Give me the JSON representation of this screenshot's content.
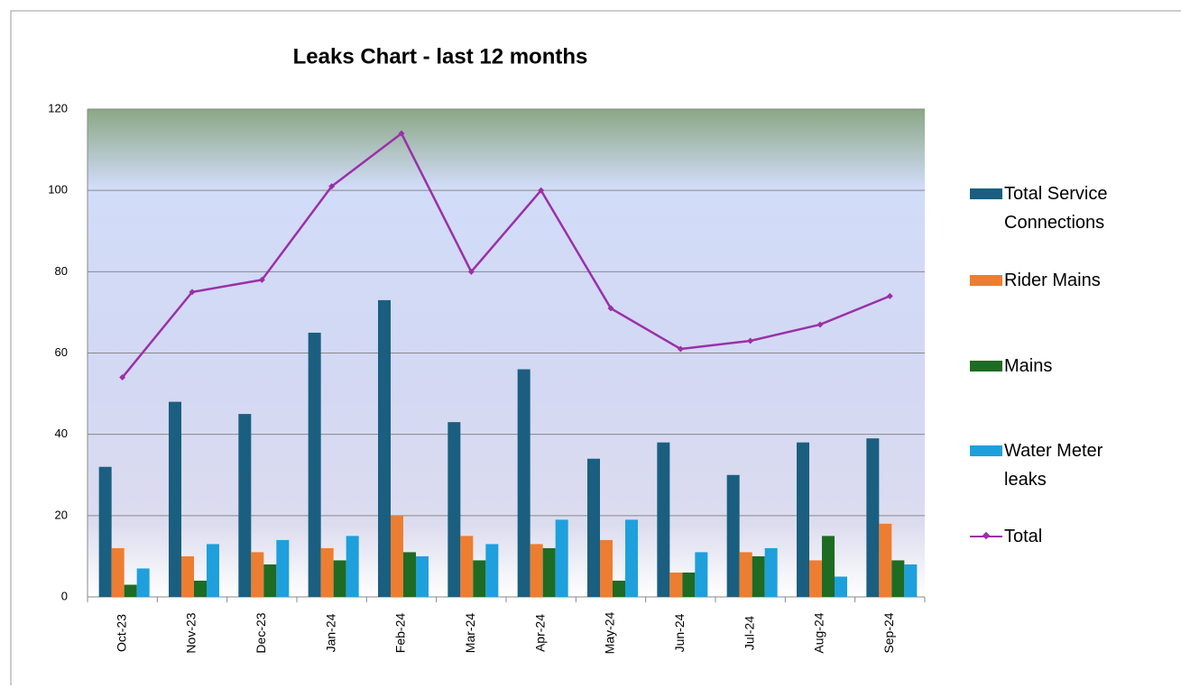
{
  "chart_data": {
    "type": "bar",
    "title": "Leaks Chart - last 12 months",
    "categories": [
      "Oct-23",
      "Nov-23",
      "Dec-23",
      "Jan-24",
      "Feb-24",
      "Mar-24",
      "Apr-24",
      "May-24",
      "Jun-24",
      "Jul-24",
      "Aug-24",
      "Sep-24"
    ],
    "series": [
      {
        "name": "Total Service Connections",
        "color": "#1a5f80",
        "type": "bar",
        "values": [
          32,
          48,
          45,
          65,
          73,
          43,
          56,
          34,
          38,
          30,
          38,
          39
        ]
      },
      {
        "name": "Rider Mains",
        "color": "#ed7d31",
        "type": "bar",
        "values": [
          12,
          10,
          11,
          12,
          20,
          15,
          13,
          14,
          6,
          11,
          9,
          18
        ]
      },
      {
        "name": "Mains",
        "color": "#1e6b23",
        "type": "bar",
        "values": [
          3,
          4,
          8,
          9,
          11,
          9,
          12,
          4,
          6,
          10,
          15,
          9
        ]
      },
      {
        "name": "Water Meter leaks",
        "color": "#1ea0dc",
        "type": "bar",
        "values": [
          7,
          13,
          14,
          15,
          10,
          13,
          19,
          19,
          11,
          12,
          5,
          8
        ]
      },
      {
        "name": "Total",
        "color": "#9b30a8",
        "type": "line",
        "values": [
          54,
          75,
          78,
          101,
          114,
          80,
          100,
          71,
          61,
          63,
          67,
          74
        ]
      }
    ],
    "ylim": [
      0,
      120
    ],
    "yticks": [
      0,
      20,
      40,
      60,
      80,
      100,
      120
    ],
    "grid": true,
    "legend": "right"
  }
}
